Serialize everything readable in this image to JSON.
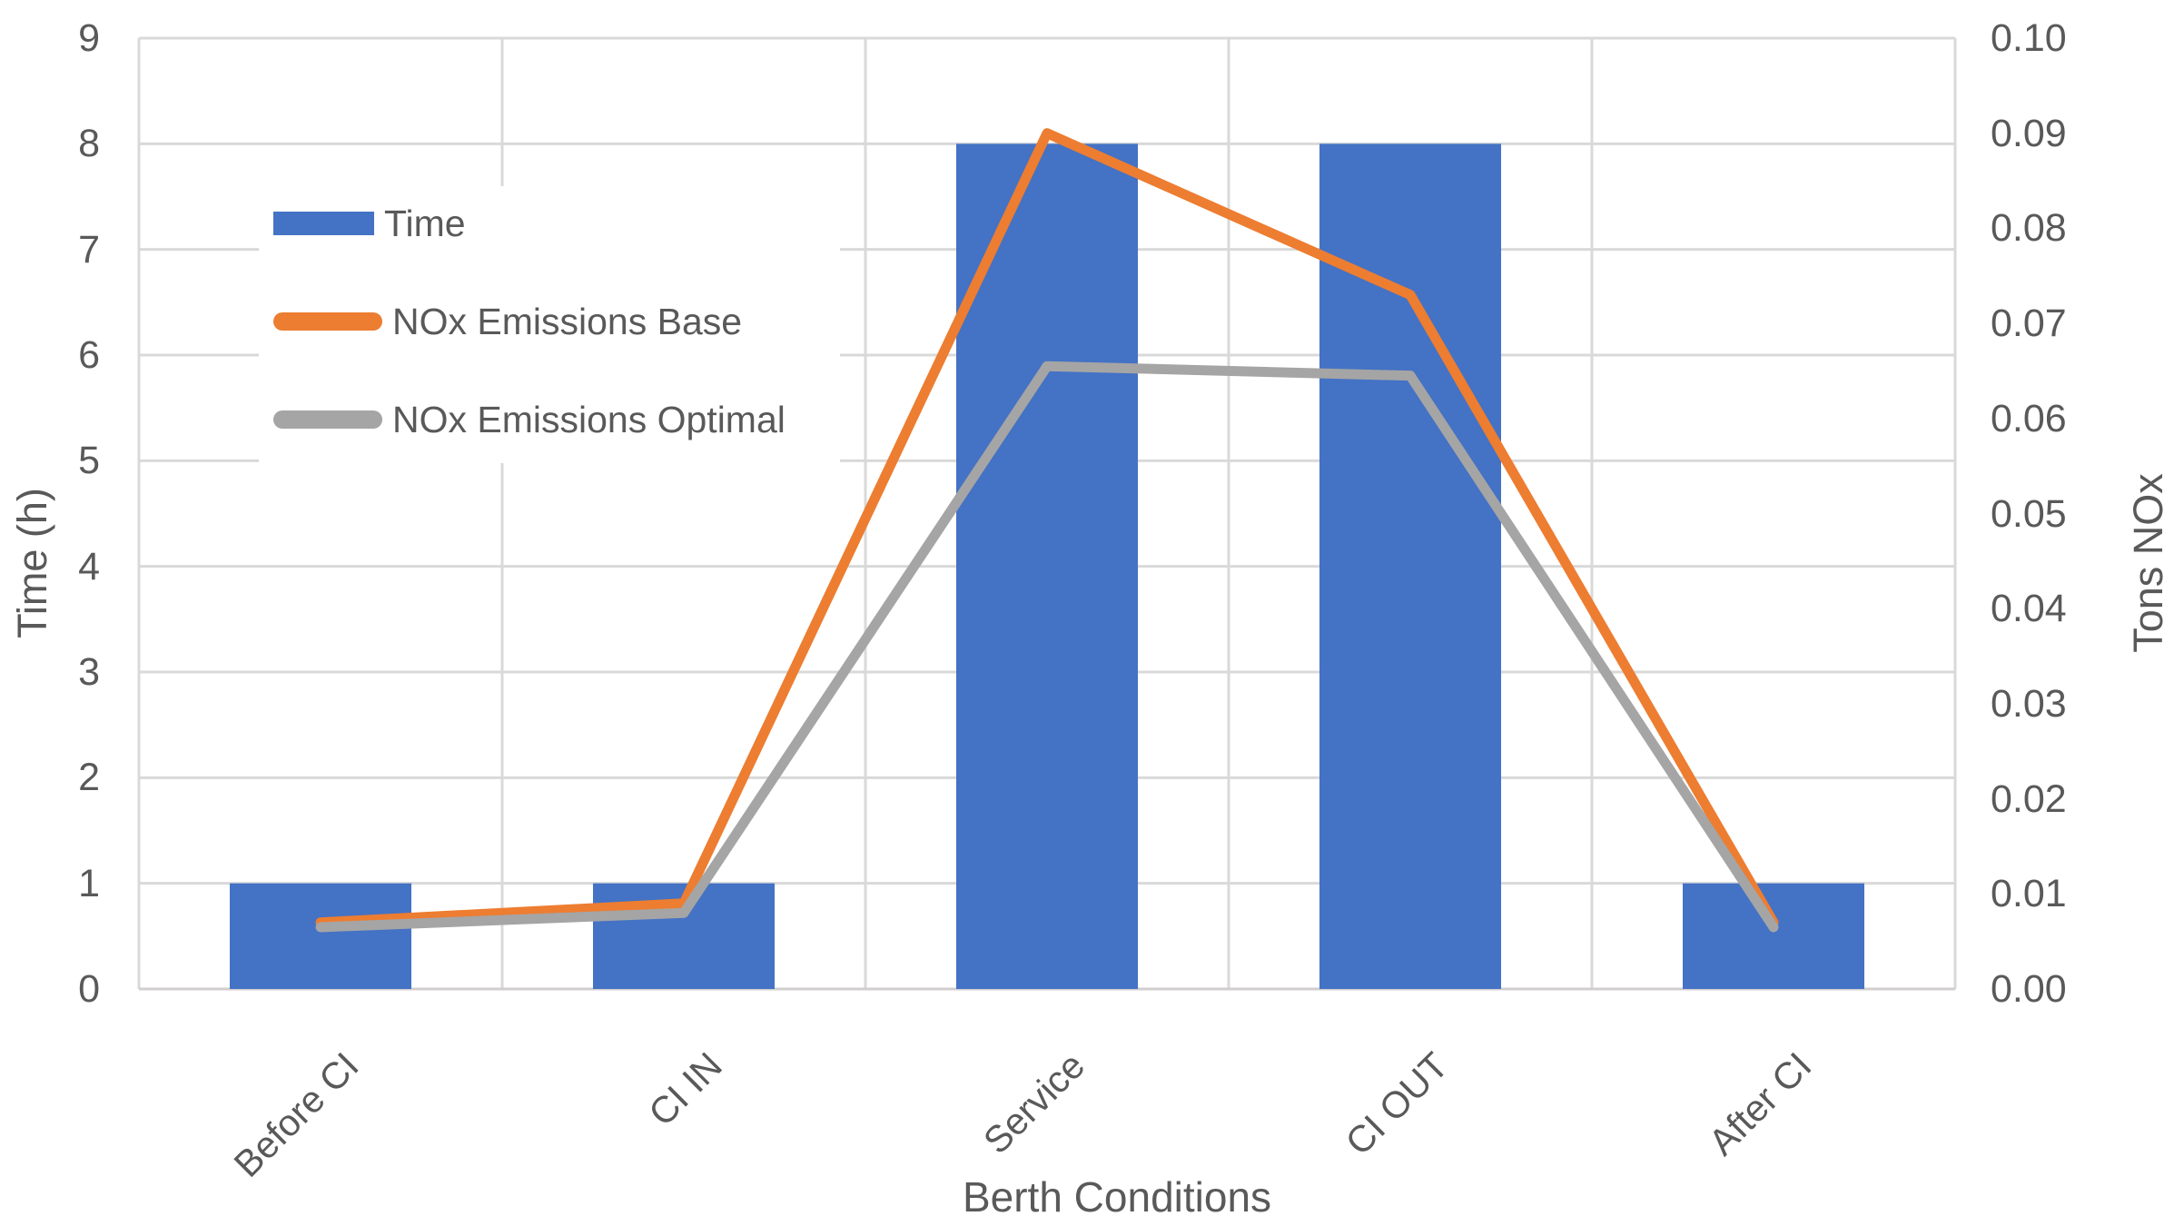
{
  "chart_data": {
    "type": "combo",
    "title": "",
    "categories": [
      "Before CI",
      "CI IN",
      "Service",
      "CI OUT",
      "After CI"
    ],
    "series": [
      {
        "name": "Time",
        "type": "bar",
        "axis": "left",
        "color": "#4472C4",
        "values": [
          1,
          1,
          8,
          8,
          1
        ]
      },
      {
        "name": "NOx Emissions Base",
        "type": "line",
        "axis": "right",
        "color": "#ED7D31",
        "values": [
          0.007,
          0.009,
          0.09,
          0.073,
          0.007
        ]
      },
      {
        "name": "NOx Emissions Optimal",
        "type": "line",
        "axis": "right",
        "color": "#A5A5A5",
        "values": [
          0.0065,
          0.008,
          0.0655,
          0.0645,
          0.0065
        ]
      }
    ],
    "left_axis": {
      "title": "Time (h)",
      "min": 0,
      "max": 9,
      "step": 1,
      "ticks": [
        "0",
        "1",
        "2",
        "3",
        "4",
        "5",
        "6",
        "7",
        "8",
        "9"
      ]
    },
    "right_axis": {
      "title": "Tons NOx",
      "min": 0,
      "max": 0.1,
      "step": 0.01,
      "ticks": [
        "0.00",
        "0.01",
        "0.02",
        "0.03",
        "0.04",
        "0.05",
        "0.06",
        "0.07",
        "0.08",
        "0.09",
        "0.10"
      ]
    },
    "x_axis": {
      "title": "Berth Conditions"
    },
    "legend": {
      "position": "inside-top-left",
      "entries": [
        "Time",
        "NOx Emissions Base",
        "NOx Emissions Optimal"
      ]
    },
    "grid": {
      "horizontal": true,
      "vertical": true,
      "color": "#D9D9D9",
      "axis_line_color": "#D0CECE"
    },
    "text_color": "#595959",
    "background": "#FFFFFF"
  }
}
